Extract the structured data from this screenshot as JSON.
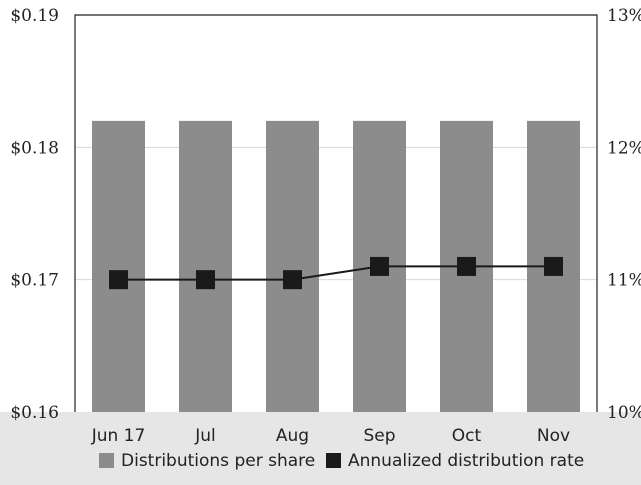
{
  "chart_data": {
    "type": "bar",
    "categories": [
      "Jun 17",
      "Jul",
      "Aug",
      "Sep",
      "Oct",
      "Nov"
    ],
    "series": [
      {
        "name": "Distributions per share",
        "type": "bar",
        "axis": "left",
        "color": "#8c8c8c",
        "values": [
          0.182,
          0.182,
          0.182,
          0.182,
          0.182,
          0.182
        ]
      },
      {
        "name": "Annualized distribution rate",
        "type": "line",
        "axis": "right",
        "color": "#1a1a1a",
        "marker": "square",
        "values": [
          11.0,
          11.0,
          11.0,
          11.1,
          11.1,
          11.1
        ]
      }
    ],
    "yleft": {
      "ylim": [
        0.16,
        0.19
      ],
      "ticks": [
        "$0.16",
        "$0.17",
        "$0.18",
        "$0.19"
      ]
    },
    "yright": {
      "ylim": [
        10,
        13
      ],
      "ticks": [
        "10%",
        "11%",
        "12%",
        "13%"
      ]
    },
    "grid": "horizontal",
    "legend_position": "bottom"
  }
}
